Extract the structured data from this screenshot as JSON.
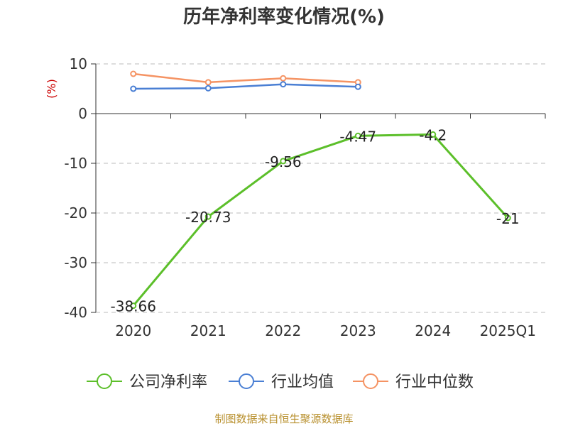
{
  "chart_data": {
    "type": "line",
    "title": "历年净利率变化情况(%)",
    "ylabel": "(%)",
    "ylim": [
      -40,
      10
    ],
    "yticks": [
      10,
      0,
      -10,
      -20,
      -30,
      -40
    ],
    "categories": [
      "2020",
      "2021",
      "2022",
      "2023",
      "2024",
      "2025Q1"
    ],
    "grid": true,
    "legend_position": "bottom",
    "series": [
      {
        "name": "公司净利率",
        "color": "#5cbf2a",
        "values": [
          -38.66,
          -20.73,
          -9.56,
          -4.47,
          -4.2,
          -21
        ],
        "labels": [
          "-38.66",
          "-20.73",
          "-9.56",
          "-4.47",
          "-4.2",
          "-21"
        ]
      },
      {
        "name": "行业均值",
        "color": "#4a7fd4",
        "values": [
          5.0,
          5.1,
          5.9,
          5.4,
          null,
          null
        ]
      },
      {
        "name": "行业中位数",
        "color": "#f59363",
        "values": [
          8.0,
          6.3,
          7.1,
          6.3,
          null,
          null
        ]
      }
    ]
  },
  "source": "制图数据来自恒生聚源数据库"
}
